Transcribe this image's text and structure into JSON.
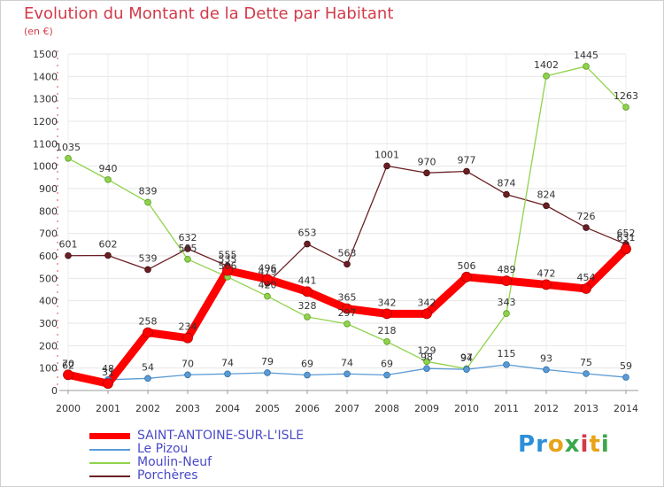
{
  "header": {
    "title": "Evolution du Montant de la Dette par Habitant",
    "subtitle": "(en €)"
  },
  "logo": {
    "text": "Proxiti",
    "colors": [
      "#2e8fd8",
      "#e8a318",
      "#3aa84a",
      "#d23a4a"
    ]
  },
  "chart_data": {
    "type": "line",
    "title": "Evolution du Montant de la Dette par Habitant",
    "subtitle": "(en €)",
    "xlabel": "",
    "ylabel": "",
    "x": [
      2000,
      2001,
      2002,
      2003,
      2004,
      2005,
      2006,
      2007,
      2008,
      2009,
      2010,
      2011,
      2012,
      2013,
      2014
    ],
    "ylim": [
      0,
      1500
    ],
    "yticks": [
      0,
      100,
      200,
      300,
      400,
      500,
      600,
      700,
      800,
      900,
      1000,
      1100,
      1200,
      1300,
      1400,
      1500
    ],
    "grid": true,
    "legend_position": "bottom-left",
    "series": [
      {
        "name": "SAINT-ANTOINE-SUR-L'ISLE",
        "color": "#ff0000",
        "values": [
          70,
          31,
          258,
          234,
          535,
          496,
          441,
          365,
          342,
          342,
          506,
          489,
          472,
          454,
          631
        ]
      },
      {
        "name": "Le Pizou",
        "color": "#5b9bd5",
        "values": [
          62,
          48,
          54,
          70,
          74,
          79,
          69,
          74,
          69,
          98,
          94,
          115,
          93,
          75,
          59
        ]
      },
      {
        "name": "Moulin-Neuf",
        "color": "#8fd34a",
        "values": [
          1035,
          940,
          839,
          585,
          506,
          420,
          328,
          297,
          218,
          129,
          97,
          343,
          1402,
          1445,
          1263
        ]
      },
      {
        "name": "Porchères",
        "color": "#6b1f24",
        "values": [
          601,
          602,
          539,
          632,
          555,
          479,
          653,
          563,
          1001,
          970,
          977,
          874,
          824,
          726,
          652
        ]
      }
    ]
  }
}
